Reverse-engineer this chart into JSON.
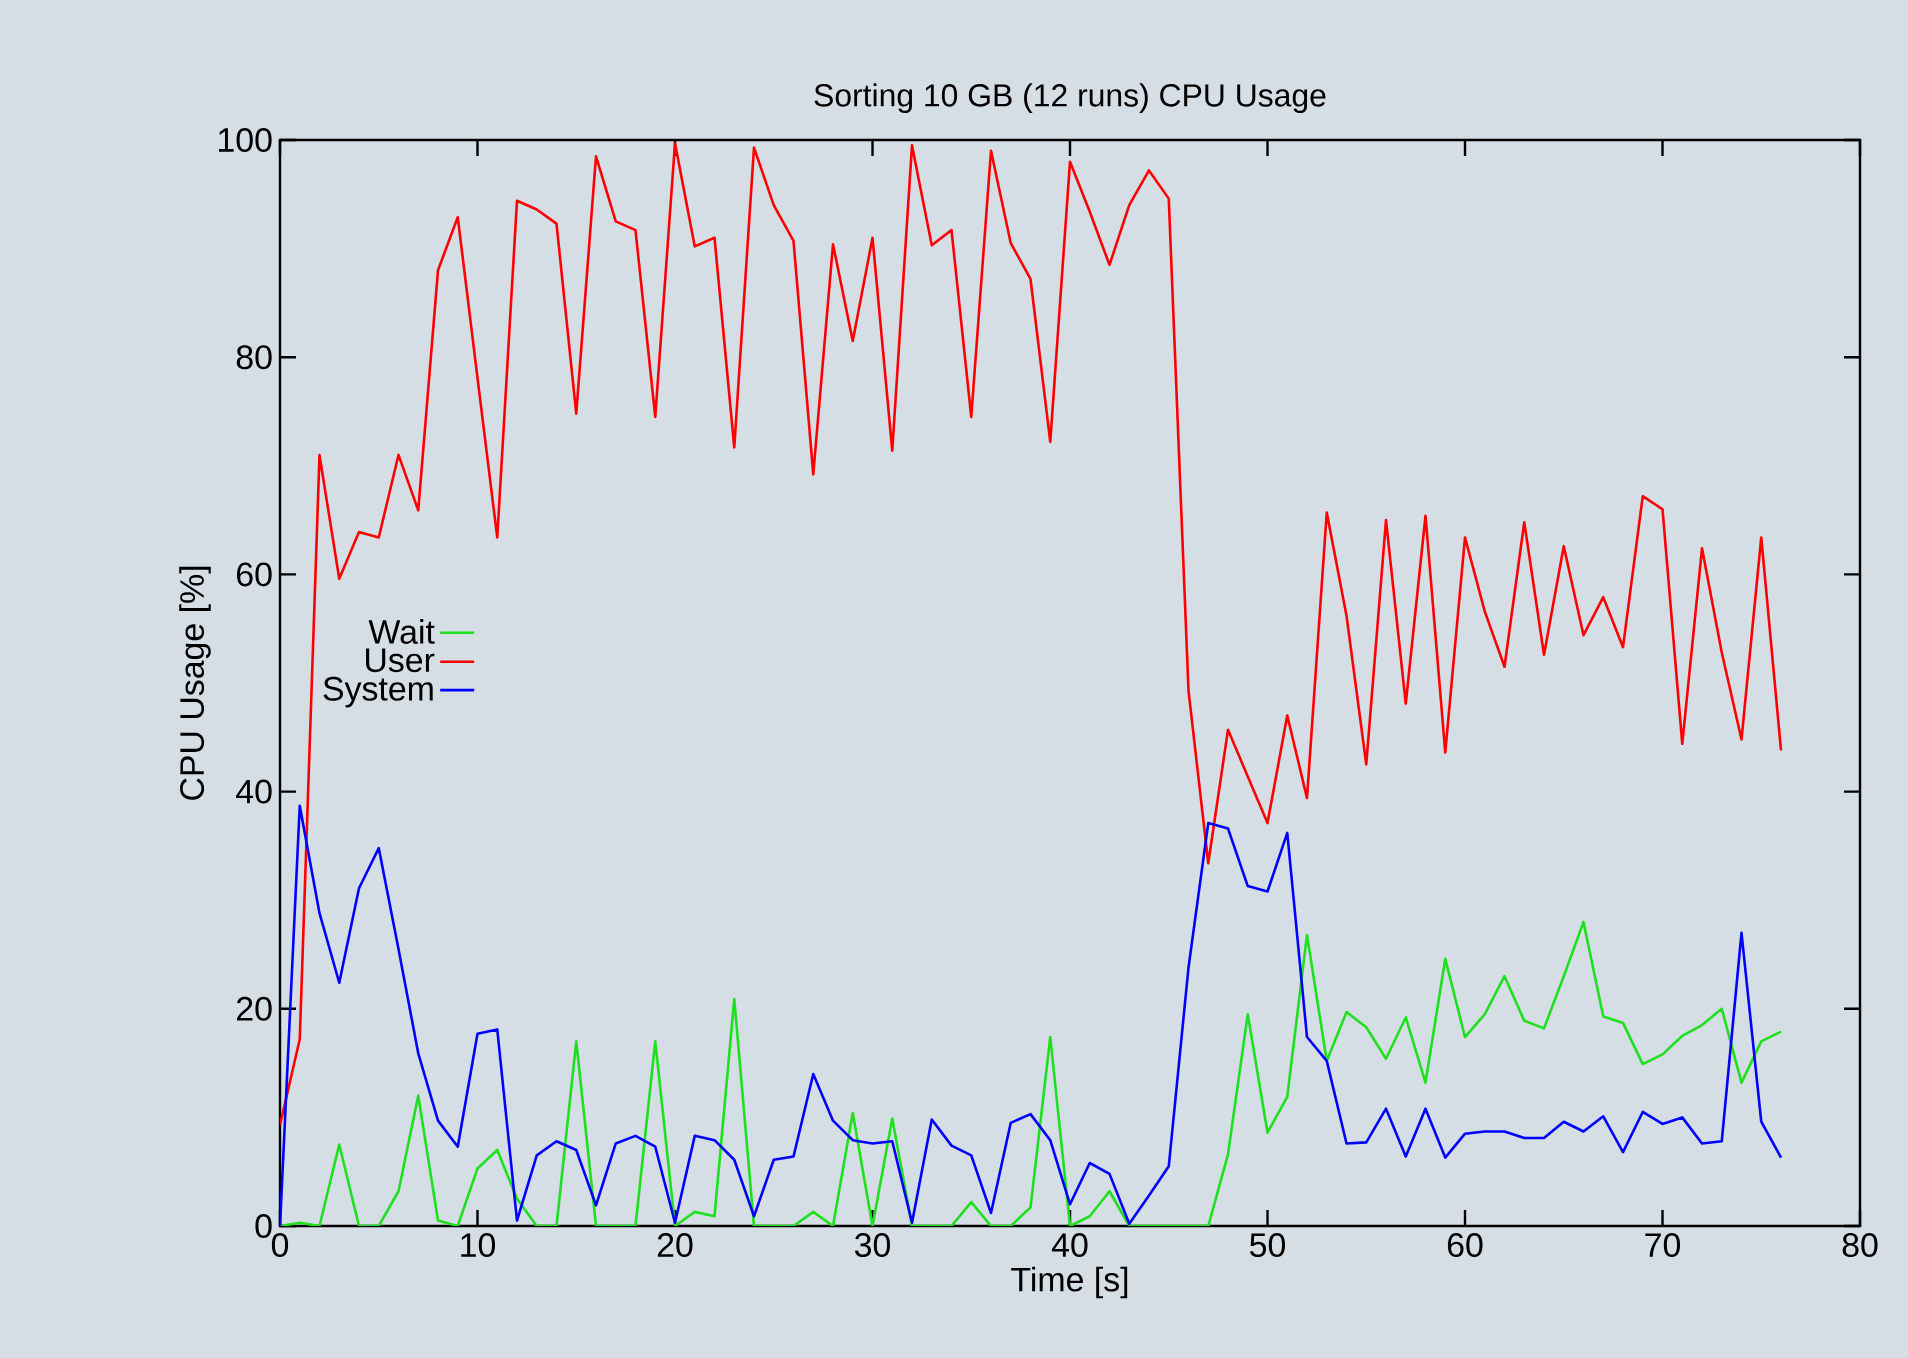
{
  "chart_data": {
    "type": "line",
    "title": "Sorting 10 GB (12 runs) CPU Usage",
    "xlabel": "Time [s]",
    "ylabel": "CPU Usage [%]",
    "x": [
      0,
      1,
      2,
      3,
      4,
      5,
      6,
      7,
      8,
      9,
      10,
      11,
      12,
      13,
      14,
      15,
      16,
      17,
      18,
      19,
      20,
      21,
      22,
      23,
      24,
      25,
      26,
      27,
      28,
      29,
      30,
      31,
      32,
      33,
      34,
      35,
      36,
      37,
      38,
      39,
      40,
      41,
      42,
      43,
      44,
      45,
      46,
      47,
      48,
      49,
      50,
      51,
      52,
      53,
      54,
      55,
      56,
      57,
      58,
      59,
      60,
      61,
      62,
      63,
      64,
      65,
      66,
      67,
      68,
      69,
      70,
      71,
      72,
      73,
      74,
      75,
      76
    ],
    "series": [
      {
        "name": "Wait",
        "color": "#1ee01e",
        "values": [
          0,
          0.3,
          0,
          7.5,
          0,
          0,
          3.2,
          12,
          0.5,
          0,
          5.3,
          7,
          2.5,
          0,
          0,
          17,
          0,
          0,
          0,
          17,
          0,
          1.3,
          0.9,
          20.9,
          0,
          0,
          0,
          1.3,
          0,
          10.4,
          0,
          9.9,
          0,
          0,
          0,
          2.2,
          0,
          0,
          1.7,
          17.4,
          0,
          0.9,
          3.2,
          0,
          0,
          0,
          0,
          0,
          6.6,
          19.5,
          8.6,
          11.9,
          26.8,
          15.2,
          19.7,
          18.3,
          15.4,
          19.2,
          13.2,
          24.6,
          17.4,
          19.5,
          23,
          18.9,
          18.2,
          23,
          28,
          19.3,
          18.7,
          14.9,
          15.8,
          17.5,
          18.5,
          20,
          13.2,
          17,
          17.9
        ]
      },
      {
        "name": "User",
        "color": "#ff0000",
        "values": [
          9.3,
          17.2,
          71,
          59.6,
          63.9,
          63.4,
          71,
          65.9,
          88,
          92.9,
          78.1,
          63.4,
          94.4,
          93.6,
          92.3,
          74.8,
          98.5,
          92.5,
          91.7,
          74.5,
          99.7,
          90.2,
          91,
          71.7,
          99.3,
          94,
          90.7,
          69.2,
          90.4,
          81.5,
          91,
          71.4,
          99.5,
          90.3,
          91.7,
          74.5,
          99,
          90.5,
          87.2,
          72.2,
          98,
          93.4,
          88.5,
          94,
          97.2,
          94.6,
          49.3,
          33.4,
          45.7,
          41.4,
          37.1,
          47,
          39.4,
          65.7,
          56.2,
          42.5,
          65,
          48.1,
          65.4,
          43.6,
          63.4,
          56.6,
          51.5,
          64.8,
          52.6,
          62.6,
          54.4,
          57.9,
          53.3,
          67.2,
          66,
          44.4,
          62.4,
          52.8,
          44.8,
          63.4,
          43.8
        ]
      },
      {
        "name": "System",
        "color": "#0000ff",
        "values": [
          0,
          38.7,
          28.8,
          22.4,
          31.1,
          34.8,
          25.5,
          15.9,
          9.7,
          7.3,
          17.7,
          18.1,
          0.5,
          6.5,
          7.8,
          7,
          1.9,
          7.6,
          8.3,
          7.3,
          0.3,
          8.3,
          7.9,
          6.1,
          0.9,
          6.1,
          6.4,
          14,
          9.7,
          7.9,
          7.6,
          7.8,
          0.3,
          9.8,
          7.4,
          6.5,
          1.2,
          9.5,
          10.3,
          7.9,
          2,
          5.8,
          4.8,
          0.2,
          2.8,
          5.5,
          23.8,
          37.1,
          36.6,
          31.3,
          30.8,
          36.2,
          17.4,
          15.2,
          7.6,
          7.7,
          10.8,
          6.4,
          10.8,
          6.3,
          8.5,
          8.7,
          8.7,
          8.1,
          8.1,
          9.6,
          8.7,
          10.1,
          6.8,
          10.5,
          9.4,
          10,
          7.6,
          7.8,
          27,
          9.6,
          6.3
        ]
      }
    ],
    "xlim": [
      0,
      80
    ],
    "xticks": [
      0,
      10,
      20,
      30,
      40,
      50,
      60,
      70,
      80
    ],
    "ylim": [
      0,
      100
    ],
    "yticks": [
      0,
      20,
      40,
      60,
      80,
      100
    ],
    "legend": "left"
  }
}
